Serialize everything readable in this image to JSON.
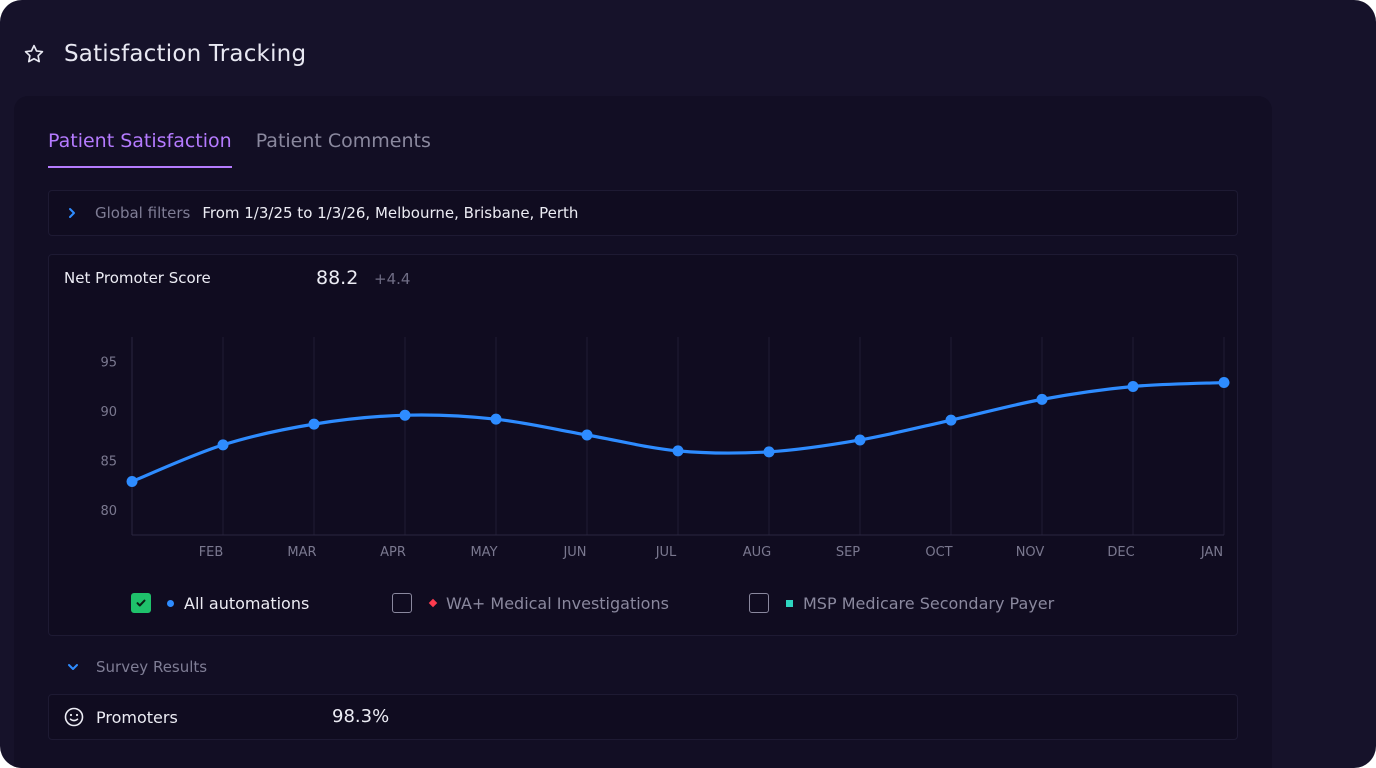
{
  "page": {
    "title": "Satisfaction Tracking"
  },
  "tabs": [
    {
      "label": "Patient Satisfaction",
      "active": true
    },
    {
      "label": "Patient Comments",
      "active": false
    }
  ],
  "global_filters": {
    "label": "Global filters",
    "value": "From 1/3/25 to 1/3/26, Melbourne, Brisbane, Perth"
  },
  "nps": {
    "label": "Net Promoter Score",
    "value": "88.2",
    "delta": "+4.4"
  },
  "legend": [
    {
      "label": "All automations",
      "checked": true,
      "marker": "dot",
      "color": "#2e8cff"
    },
    {
      "label": "WA+ Medical Investigations",
      "checked": false,
      "marker": "diamond",
      "color": "#ff3b4e"
    },
    {
      "label": "MSP Medicare Secondary Payer",
      "checked": false,
      "marker": "square",
      "color": "#2ed6c0"
    }
  ],
  "survey": {
    "label": "Survey Results"
  },
  "promoters": {
    "label": "Promoters",
    "value": "98.3%"
  },
  "colors": {
    "accent": "#b57bff",
    "line": "#2e8cff",
    "check": "#1fc16b",
    "background": "#16122a"
  },
  "icons": {
    "title": "star-icon",
    "filters": "chevron-right-icon",
    "survey": "chevron-down-icon",
    "promoters": "smile-icon",
    "checkbox": "check-icon"
  },
  "chart_data": {
    "type": "line",
    "x": [
      "",
      "FEB",
      "MAR",
      "APR",
      "MAY",
      "JUN",
      "JUL",
      "AUG",
      "SEP",
      "OCT",
      "NOV",
      "DEC",
      "JAN"
    ],
    "series": [
      {
        "name": "All automations",
        "values": [
          82.9,
          86.6,
          88.7,
          89.6,
          89.2,
          87.6,
          86.0,
          85.9,
          87.1,
          89.1,
          91.2,
          92.5,
          92.9
        ]
      }
    ],
    "yticks": [
      80,
      85,
      90,
      95
    ],
    "ylim": [
      77.5,
      97.5
    ],
    "grid": {
      "vertical": true,
      "horizontal": false
    },
    "title": "",
    "xlabel": "",
    "ylabel": ""
  }
}
